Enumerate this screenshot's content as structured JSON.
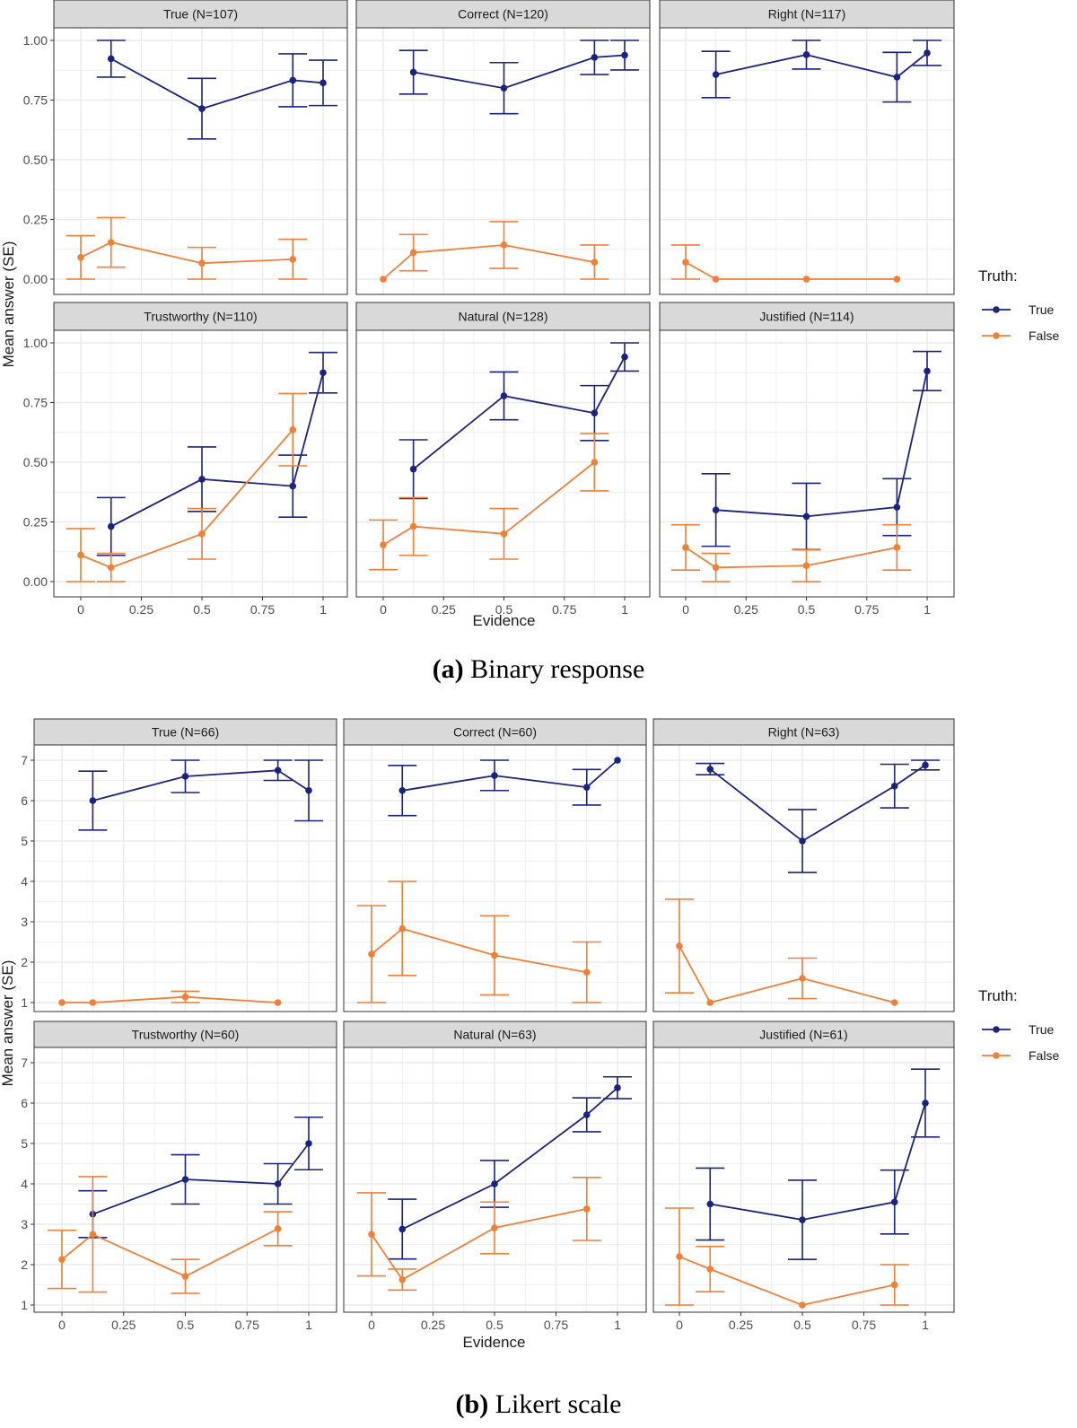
{
  "figure": {
    "caption_a_label": "(a)",
    "caption_a_text": " Binary response",
    "caption_b_label": "(b)",
    "caption_b_text": " Likert scale"
  },
  "colors": {
    "true_series": "#1a237e",
    "false_series": "#f07f38",
    "strip": "#d9d9d9",
    "grid": "#ebebeb"
  },
  "chart_data": [
    {
      "type": "line",
      "subtype": "faceted line chart with error bars",
      "xlabel": "Evidence",
      "ylabel": "Mean answer (SE)",
      "ylim": [
        0,
        1
      ],
      "yticks": [
        "0.00",
        "0.25",
        "0.50",
        "0.75",
        "1.00"
      ],
      "xticks": [
        "0",
        "0.25",
        "0.5",
        "0.75",
        "1"
      ],
      "legend": {
        "title": "Truth:",
        "entries": [
          "True",
          "False"
        ],
        "placement": "right"
      },
      "panels": [
        {
          "title": "True (N=107)",
          "series": [
            {
              "name": "True",
              "points": [
                [
                  0.125,
                  0.923,
                  0.846,
                  1.0
                ],
                [
                  0.5,
                  0.714,
                  0.587,
                  0.841
                ],
                [
                  0.875,
                  0.833,
                  0.722,
                  0.944
                ],
                [
                  1.0,
                  0.822,
                  0.727,
                  0.917
                ]
              ]
            },
            {
              "name": "False",
              "points": [
                [
                  0,
                  0.091,
                  0.0,
                  0.182
                ],
                [
                  0.125,
                  0.154,
                  0.05,
                  0.258
                ],
                [
                  0.5,
                  0.067,
                  0.0,
                  0.133
                ],
                [
                  0.875,
                  0.083,
                  0.0,
                  0.167
                ]
              ]
            }
          ]
        },
        {
          "title": "Correct (N=120)",
          "series": [
            {
              "name": "True",
              "points": [
                [
                  0.125,
                  0.867,
                  0.775,
                  0.958
                ],
                [
                  0.5,
                  0.8,
                  0.693,
                  0.907
                ],
                [
                  0.875,
                  0.929,
                  0.857,
                  1.0
                ],
                [
                  1.0,
                  0.938,
                  0.876,
                  1.0
                ]
              ]
            },
            {
              "name": "False",
              "points": [
                [
                  0,
                  0.0,
                  0.0,
                  0.0
                ],
                [
                  0.125,
                  0.111,
                  0.035,
                  0.187
                ],
                [
                  0.5,
                  0.143,
                  0.045,
                  0.241
                ],
                [
                  0.875,
                  0.071,
                  0.0,
                  0.143
                ]
              ]
            }
          ]
        },
        {
          "title": "Right (N=117)",
          "series": [
            {
              "name": "True",
              "points": [
                [
                  0.125,
                  0.857,
                  0.76,
                  0.954
                ],
                [
                  0.5,
                  0.94,
                  0.88,
                  1.0
                ],
                [
                  0.875,
                  0.846,
                  0.742,
                  0.95
                ],
                [
                  1.0,
                  0.947,
                  0.895,
                  1.0
                ]
              ]
            },
            {
              "name": "False",
              "points": [
                [
                  0,
                  0.071,
                  0.0,
                  0.143
                ],
                [
                  0.125,
                  0.0,
                  0.0,
                  0.0
                ],
                [
                  0.5,
                  0.0,
                  0.0,
                  0.0
                ],
                [
                  0.875,
                  0.0,
                  0.0,
                  0.0
                ]
              ]
            }
          ]
        },
        {
          "title": "Trustworthy (N=110)",
          "series": [
            {
              "name": "True",
              "points": [
                [
                  0.125,
                  0.231,
                  0.11,
                  0.352
                ],
                [
                  0.5,
                  0.429,
                  0.294,
                  0.564
                ],
                [
                  0.875,
                  0.4,
                  0.27,
                  0.53
                ],
                [
                  1.0,
                  0.875,
                  0.79,
                  0.96
                ]
              ]
            },
            {
              "name": "False",
              "points": [
                [
                  0,
                  0.111,
                  0.0,
                  0.222
                ],
                [
                  0.125,
                  0.059,
                  0.0,
                  0.118
                ],
                [
                  0.5,
                  0.2,
                  0.094,
                  0.306
                ],
                [
                  0.875,
                  0.636,
                  0.485,
                  0.788
                ]
              ]
            }
          ]
        },
        {
          "title": "Natural (N=128)",
          "series": [
            {
              "name": "True",
              "points": [
                [
                  0.125,
                  0.471,
                  0.348,
                  0.594
                ],
                [
                  0.5,
                  0.778,
                  0.678,
                  0.878
                ],
                [
                  0.875,
                  0.706,
                  0.591,
                  0.821
                ],
                [
                  1.0,
                  0.941,
                  0.882,
                  1.0
                ]
              ]
            },
            {
              "name": "False",
              "points": [
                [
                  0,
                  0.154,
                  0.05,
                  0.258
                ],
                [
                  0.125,
                  0.231,
                  0.11,
                  0.352
                ],
                [
                  0.5,
                  0.2,
                  0.094,
                  0.306
                ],
                [
                  0.875,
                  0.5,
                  0.38,
                  0.62
                ]
              ]
            }
          ]
        },
        {
          "title": "Justified (N=114)",
          "series": [
            {
              "name": "True",
              "points": [
                [
                  0.125,
                  0.3,
                  0.148,
                  0.452
                ],
                [
                  0.5,
                  0.273,
                  0.134,
                  0.412
                ],
                [
                  0.875,
                  0.312,
                  0.193,
                  0.431
                ],
                [
                  1.0,
                  0.882,
                  0.8,
                  0.964
                ]
              ]
            },
            {
              "name": "False",
              "points": [
                [
                  0,
                  0.143,
                  0.048,
                  0.238
                ],
                [
                  0.125,
                  0.059,
                  0.0,
                  0.118
                ],
                [
                  0.5,
                  0.067,
                  0.0,
                  0.133
                ],
                [
                  0.875,
                  0.143,
                  0.048,
                  0.238
                ]
              ]
            }
          ]
        }
      ]
    },
    {
      "type": "line",
      "subtype": "faceted line chart with error bars",
      "xlabel": "Evidence",
      "ylabel": "Mean answer (SE)",
      "ylim": [
        1,
        7
      ],
      "yticks": [
        "1",
        "2",
        "3",
        "4",
        "5",
        "6",
        "7"
      ],
      "xticks": [
        "0",
        "0.25",
        "0.5",
        "0.75",
        "1"
      ],
      "legend": {
        "title": "Truth:",
        "entries": [
          "True",
          "False"
        ],
        "placement": "right"
      },
      "panels": [
        {
          "title": "True (N=66)",
          "series": [
            {
              "name": "True",
              "points": [
                [
                  0.125,
                  6.0,
                  5.27,
                  6.73
                ],
                [
                  0.5,
                  6.6,
                  6.2,
                  7.0
                ],
                [
                  0.875,
                  6.75,
                  6.5,
                  7.0
                ],
                [
                  1.0,
                  6.25,
                  5.5,
                  7.0
                ]
              ]
            },
            {
              "name": "False",
              "points": [
                [
                  0,
                  1.0,
                  1.0,
                  1.0
                ],
                [
                  0.125,
                  1.0,
                  1.0,
                  1.0
                ],
                [
                  0.5,
                  1.14,
                  1.0,
                  1.28
                ],
                [
                  0.875,
                  1.0,
                  1.0,
                  1.0
                ]
              ]
            }
          ]
        },
        {
          "title": "Correct (N=60)",
          "series": [
            {
              "name": "True",
              "points": [
                [
                  0.125,
                  6.25,
                  5.63,
                  6.87
                ],
                [
                  0.5,
                  6.62,
                  6.25,
                  7.0
                ],
                [
                  0.875,
                  6.33,
                  5.89,
                  6.77
                ],
                [
                  1.0,
                  7.0,
                  7.0,
                  7.0
                ]
              ]
            },
            {
              "name": "False",
              "points": [
                [
                  0,
                  2.2,
                  1.0,
                  3.4
                ],
                [
                  0.125,
                  2.83,
                  1.67,
                  4.0
                ],
                [
                  0.5,
                  2.17,
                  1.19,
                  3.15
                ],
                [
                  0.875,
                  1.75,
                  1.0,
                  2.5
                ]
              ]
            }
          ]
        },
        {
          "title": "Right (N=63)",
          "series": [
            {
              "name": "True",
              "points": [
                [
                  0.125,
                  6.78,
                  6.64,
                  6.92
                ],
                [
                  0.5,
                  5.0,
                  4.22,
                  5.78
                ],
                [
                  0.875,
                  6.36,
                  5.82,
                  6.9
                ],
                [
                  1.0,
                  6.88,
                  6.76,
                  7.0
                ]
              ]
            },
            {
              "name": "False",
              "points": [
                [
                  0,
                  2.4,
                  1.24,
                  3.56
                ],
                [
                  0.125,
                  1.0,
                  1.0,
                  1.0
                ],
                [
                  0.5,
                  1.6,
                  1.1,
                  2.1
                ],
                [
                  0.875,
                  1.0,
                  1.0,
                  1.0
                ]
              ]
            }
          ]
        },
        {
          "title": "Trustworthy (N=60)",
          "series": [
            {
              "name": "True",
              "points": [
                [
                  0.125,
                  3.25,
                  2.67,
                  3.83
                ],
                [
                  0.5,
                  4.11,
                  3.5,
                  4.72
                ],
                [
                  0.875,
                  4.0,
                  3.5,
                  4.5
                ],
                [
                  1.0,
                  5.0,
                  4.35,
                  5.65
                ]
              ]
            },
            {
              "name": "False",
              "points": [
                [
                  0,
                  2.13,
                  1.41,
                  2.85
                ],
                [
                  0.125,
                  2.75,
                  1.32,
                  4.18
                ],
                [
                  0.5,
                  1.71,
                  1.29,
                  2.13
                ],
                [
                  0.875,
                  2.89,
                  2.47,
                  3.31
                ]
              ]
            }
          ]
        },
        {
          "title": "Natural (N=63)",
          "series": [
            {
              "name": "True",
              "points": [
                [
                  0.125,
                  2.88,
                  2.14,
                  3.62
                ],
                [
                  0.5,
                  4.0,
                  3.42,
                  4.58
                ],
                [
                  0.875,
                  5.71,
                  5.29,
                  6.13
                ],
                [
                  1.0,
                  6.38,
                  6.11,
                  6.65
                ]
              ]
            },
            {
              "name": "False",
              "points": [
                [
                  0,
                  2.75,
                  1.72,
                  3.78
                ],
                [
                  0.125,
                  1.63,
                  1.37,
                  1.89
                ],
                [
                  0.5,
                  2.91,
                  2.27,
                  3.55
                ],
                [
                  0.875,
                  3.38,
                  2.6,
                  4.16
                ]
              ]
            }
          ]
        },
        {
          "title": "Justified (N=61)",
          "series": [
            {
              "name": "True",
              "points": [
                [
                  0.125,
                  3.5,
                  2.61,
                  4.39
                ],
                [
                  0.5,
                  3.11,
                  2.13,
                  4.09
                ],
                [
                  0.875,
                  3.55,
                  2.76,
                  4.34
                ],
                [
                  1.0,
                  6.0,
                  5.16,
                  6.84
                ]
              ]
            },
            {
              "name": "False",
              "points": [
                [
                  0,
                  2.2,
                  1.0,
                  3.4
                ],
                [
                  0.125,
                  1.89,
                  1.33,
                  2.45
                ],
                [
                  0.5,
                  1.0,
                  1.0,
                  1.0
                ],
                [
                  0.875,
                  1.5,
                  1.0,
                  2.0
                ]
              ]
            }
          ]
        }
      ]
    }
  ]
}
